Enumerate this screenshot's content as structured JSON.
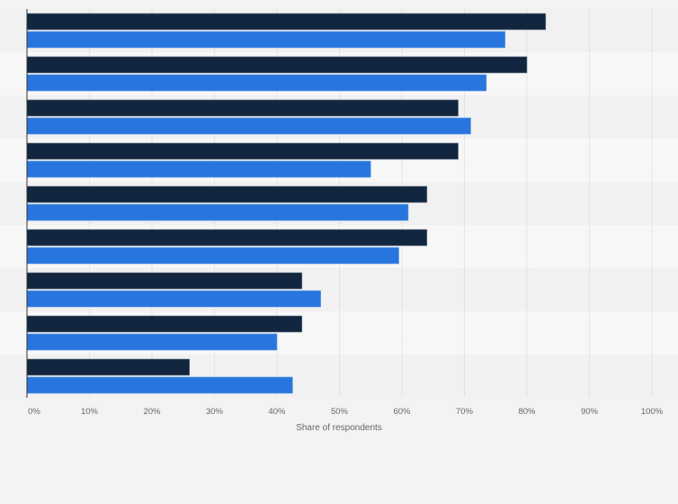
{
  "chart_data": {
    "type": "bar",
    "orientation": "horizontal",
    "title": "",
    "xlabel": "Share of respondents",
    "ylabel": "",
    "xlim": [
      0,
      100
    ],
    "x_ticks": [
      "0%",
      "10%",
      "20%",
      "30%",
      "40%",
      "50%",
      "60%",
      "70%",
      "80%",
      "90%",
      "100%"
    ],
    "grid": true,
    "legend": "none",
    "categories": [
      "",
      "",
      "",
      "",
      "",
      "",
      "",
      "",
      ""
    ],
    "series": [
      {
        "color": "#12263f",
        "values": [
          83,
          80,
          69,
          69,
          64,
          64,
          44,
          44,
          26
        ]
      },
      {
        "color": "#2876dd",
        "values": [
          76.5,
          73.5,
          71,
          55,
          61,
          59.5,
          47,
          40,
          42.5
        ]
      }
    ],
    "band_colors": [
      "#f1f1f1",
      "#f7f7f7"
    ],
    "grid_color": "#dcdcdc",
    "axis_color": "#333333"
  }
}
